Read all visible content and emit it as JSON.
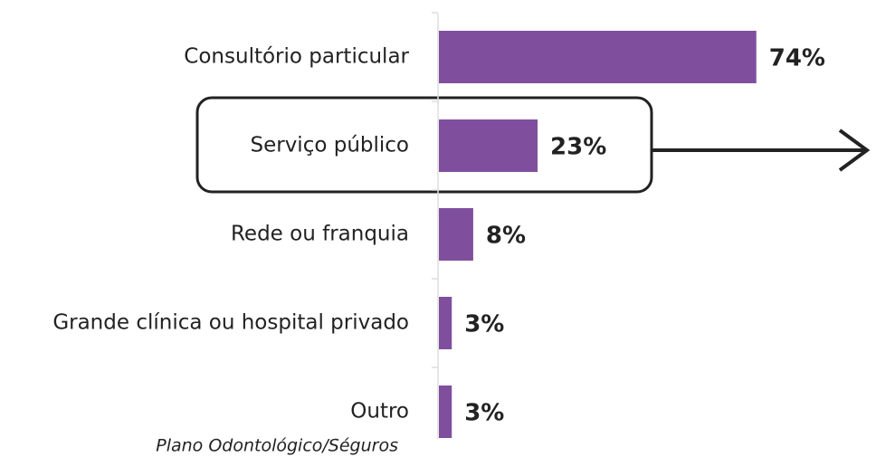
{
  "chart_data": {
    "type": "bar",
    "orientation": "horizontal",
    "categories": [
      "Consultório particular",
      "Serviço público",
      "Rede ou franquia",
      "Grande clínica ou hospital privado",
      "Outro"
    ],
    "values": [
      74,
      23,
      8,
      3,
      3
    ],
    "value_labels": [
      "74%",
      "23%",
      "8%",
      "3%",
      "3%"
    ],
    "color": "#7f4f9e",
    "annotation": "Plano Odontológico/Séguros"
  }
}
